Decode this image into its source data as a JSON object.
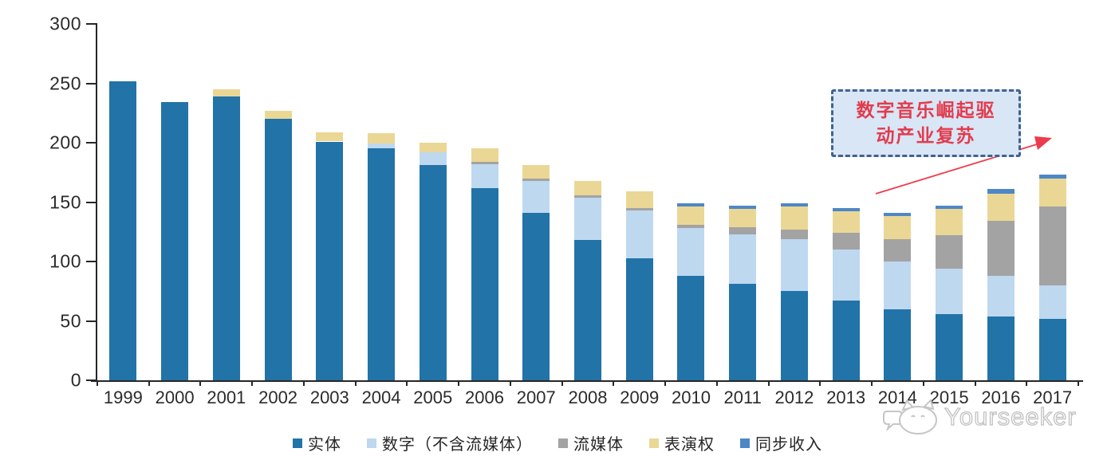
{
  "annotation": {
    "line1": "数字音乐崛起驱",
    "line2": "动产业复苏"
  },
  "watermark": {
    "brand": "Yourseeker",
    "logo_icon": "cat-chat-logo"
  },
  "colors": {
    "physical": "#2173a8",
    "digital": "#bed8ef",
    "streaming": "#a3a3a3",
    "performance": "#ebd795",
    "sync": "#4e87c6",
    "axis": "#262626",
    "annotation_bg": "#d9e6f6",
    "annotation_border": "#42618f",
    "annotation_text": "#e23c4d",
    "arrow": "#ee3b4b",
    "watermark_gray": "#c2c2c2"
  },
  "chart_data": {
    "type": "bar",
    "stacked": true,
    "grid": false,
    "legend_position": "bottom",
    "ylim": [
      0,
      300
    ],
    "yticks": [
      0,
      50,
      100,
      150,
      200,
      250,
      300
    ],
    "categories": [
      "1999",
      "2000",
      "2001",
      "2002",
      "2003",
      "2004",
      "2005",
      "2006",
      "2007",
      "2008",
      "2009",
      "2010",
      "2011",
      "2012",
      "2013",
      "2014",
      "2015",
      "2016",
      "2017"
    ],
    "series": [
      {
        "name": "实体",
        "color": "#2173a8",
        "values": [
          252,
          234,
          239,
          220,
          201,
          195,
          181,
          162,
          141,
          118,
          103,
          88,
          81,
          75,
          67,
          60,
          56,
          54,
          52
        ]
      },
      {
        "name": "数字（不含流媒体）",
        "color": "#bed8ef",
        "values": [
          0,
          0,
          0,
          0,
          0,
          4,
          11,
          20,
          27,
          36,
          40,
          40,
          42,
          44,
          43,
          40,
          38,
          34,
          28
        ]
      },
      {
        "name": "流媒体",
        "color": "#a3a3a3",
        "values": [
          0,
          0,
          0,
          0,
          0,
          0,
          0,
          2,
          2,
          2,
          2,
          3,
          6,
          8,
          14,
          19,
          28,
          46,
          66
        ]
      },
      {
        "name": "表演权",
        "color": "#ebd795",
        "values": [
          0,
          0,
          6,
          7,
          8,
          9,
          8,
          11,
          11,
          12,
          14,
          15,
          15,
          19,
          18,
          19,
          22,
          23,
          24
        ]
      },
      {
        "name": "同步收入",
        "color": "#4e87c6",
        "values": [
          0,
          0,
          0,
          0,
          0,
          0,
          0,
          0,
          0,
          0,
          0,
          3,
          3,
          3,
          3,
          3,
          3,
          4,
          3
        ]
      }
    ]
  }
}
